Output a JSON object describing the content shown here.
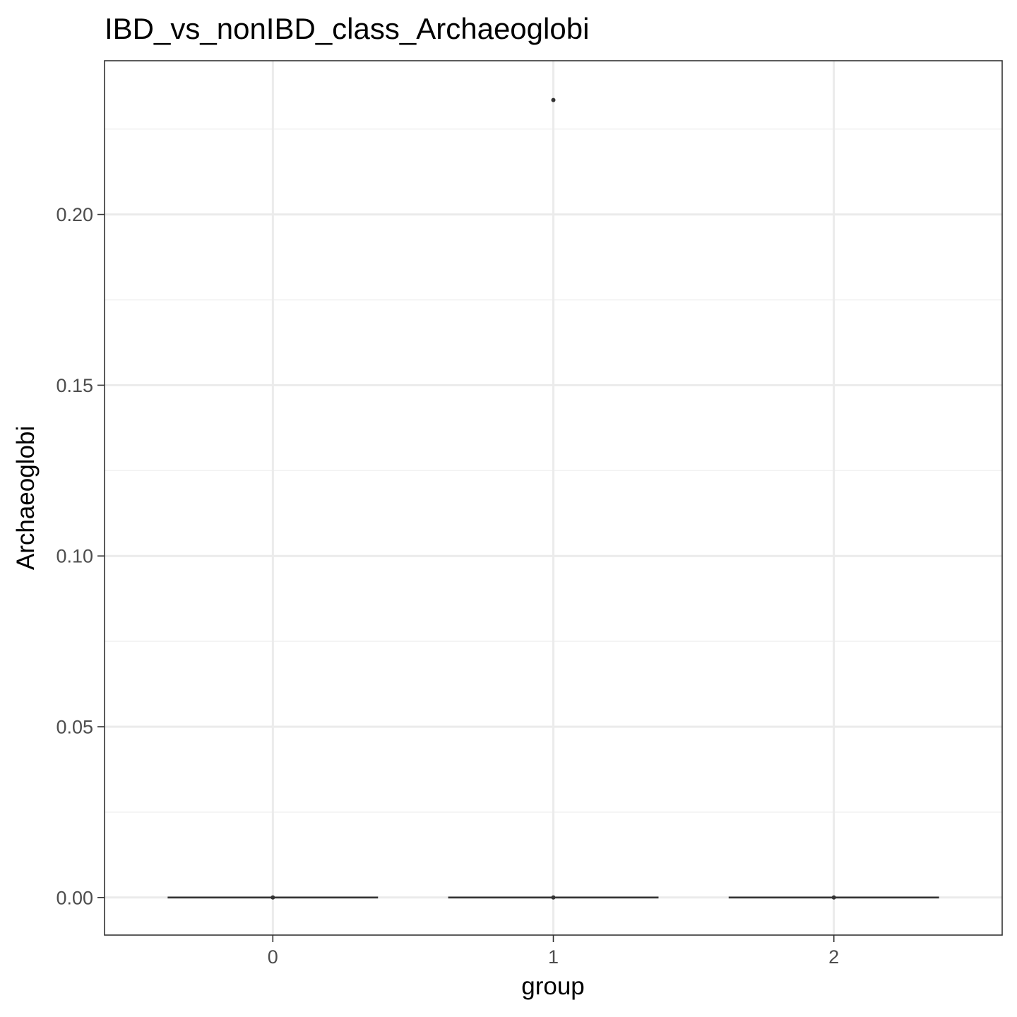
{
  "chart_data": {
    "type": "boxplot",
    "title": "IBD_vs_nonIBD_class_Archaeoglobi",
    "xlabel": "group",
    "ylabel": "Archaeoglobi",
    "categories": [
      "0",
      "1",
      "2"
    ],
    "ylim": [
      -0.011,
      0.245
    ],
    "yticks": [
      0.0,
      0.05,
      0.1,
      0.15,
      0.2
    ],
    "ytick_labels": [
      "0.00",
      "0.05",
      "0.10",
      "0.15",
      "0.20"
    ],
    "boxes": [
      {
        "group": "0",
        "min": 0,
        "q1": 0,
        "median": 0,
        "q3": 0,
        "max": 0,
        "outliers": []
      },
      {
        "group": "1",
        "min": 0,
        "q1": 0,
        "median": 0,
        "q3": 0,
        "max": 0,
        "outliers": [
          0.2335
        ]
      },
      {
        "group": "2",
        "min": 0,
        "q1": 0,
        "median": 0,
        "q3": 0,
        "max": 0,
        "outliers": []
      }
    ],
    "grid": true,
    "colors": {
      "panel_border": "#333333",
      "grid_major": "#ebebeb",
      "grid_minor": "#f2f2f2",
      "box_line": "#333333",
      "point": "#333333"
    }
  }
}
